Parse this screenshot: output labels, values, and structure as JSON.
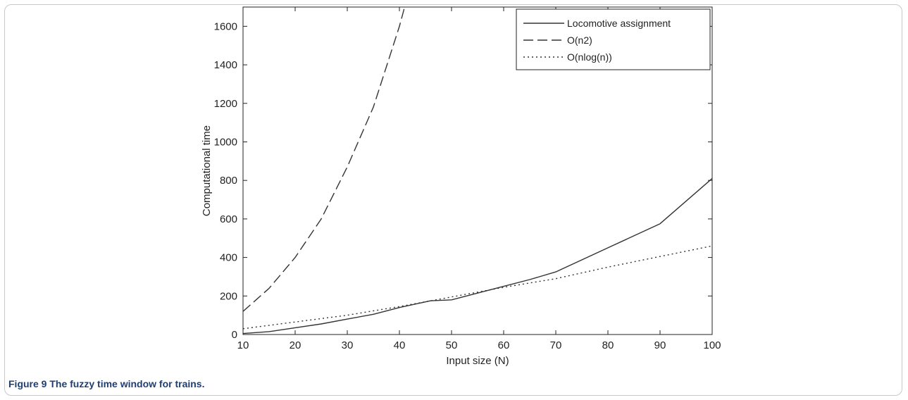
{
  "caption": {
    "label": "Figure 9",
    "text": "The fuzzy time window for trains."
  },
  "chart_data": {
    "type": "line",
    "title": "",
    "xlabel": "Input size (N)",
    "ylabel": "Computational time",
    "xlim": [
      10,
      100
    ],
    "ylim": [
      0,
      1700
    ],
    "xticks": [
      10,
      20,
      30,
      40,
      50,
      60,
      70,
      80,
      90,
      100
    ],
    "yticks": [
      0,
      200,
      400,
      600,
      800,
      1000,
      1200,
      1400,
      1600
    ],
    "grid": false,
    "legend_position": "top-right",
    "series": [
      {
        "name": "Locomotive assignment",
        "style": "solid",
        "x": [
          10,
          15,
          20,
          25,
          30,
          35,
          40,
          46,
          50,
          55,
          60,
          65,
          70,
          80,
          90,
          100
        ],
        "y": [
          5,
          15,
          35,
          55,
          80,
          105,
          140,
          175,
          180,
          215,
          250,
          285,
          325,
          450,
          575,
          810
        ]
      },
      {
        "name": "O(n2)",
        "style": "dashed",
        "x": [
          10,
          15,
          20,
          25,
          30,
          35,
          40,
          41
        ],
        "y": [
          120,
          240,
          400,
          600,
          870,
          1180,
          1600,
          1700
        ]
      },
      {
        "name": "O(nlog(n))",
        "style": "dotted",
        "x": [
          10,
          20,
          30,
          40,
          50,
          60,
          70,
          80,
          90,
          100
        ],
        "y": [
          30,
          65,
          100,
          145,
          195,
          245,
          290,
          350,
          405,
          460
        ]
      }
    ]
  }
}
